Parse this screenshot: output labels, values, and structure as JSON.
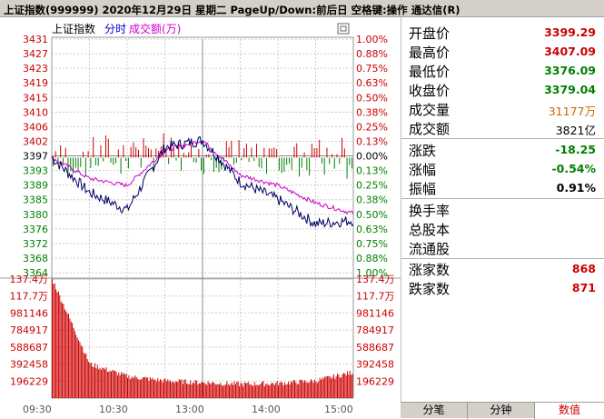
{
  "title": "上证指数(999999)  2020年12月29日 星期二 PageUp/Down:前后日 空格键:操作 通达信(R)",
  "chart_header": {
    "name": "上证指数",
    "mode": "分时",
    "indicator": "成交额(万)"
  },
  "colors": {
    "up": "#cc0000",
    "down": "#008000",
    "price_line": "#000066",
    "avg_line": "#cc00cc",
    "grid": "#cccccc",
    "volume_bar": "#cc0000"
  },
  "price_axis": {
    "left_ticks": [
      "3431",
      "3427",
      "3423",
      "3419",
      "3415",
      "3410",
      "3406",
      "3402",
      "3397",
      "3393",
      "3389",
      "3385",
      "3380",
      "3376",
      "3372",
      "3368",
      "3364"
    ],
    "right_ticks": [
      "1.00%",
      "0.88%",
      "0.75%",
      "0.63%",
      "0.50%",
      "0.38%",
      "0.25%",
      "0.13%",
      "0.00%",
      "0.13%",
      "0.25%",
      "0.38%",
      "0.50%",
      "0.63%",
      "0.75%",
      "0.88%",
      "1.00%"
    ],
    "center_index": 8
  },
  "volume_axis": {
    "ticks": [
      "137.4万",
      "117.7万",
      "981146",
      "784917",
      "588687",
      "392458",
      "196229"
    ]
  },
  "time_axis": [
    "09:30",
    "10:30",
    "13:00",
    "14:00",
    "15:00"
  ],
  "chart_data": {
    "type": "line",
    "prev_close": 3397,
    "ylim": [
      3364,
      3431
    ],
    "volume_ylim": [
      0,
      1374000
    ],
    "x": [
      "09:30",
      "10:00",
      "10:30",
      "11:00",
      "11:30/13:00",
      "13:30",
      "14:00",
      "14:30",
      "15:00"
    ],
    "series": [
      {
        "values": [
          3397,
          3387,
          3382,
          3400,
          3402,
          3390,
          3385,
          3378,
          3379
        ]
      },
      {
        "values": [
          3397,
          3391,
          3389,
          3399,
          3402,
          3392,
          3389,
          3384,
          3381
        ]
      }
    ],
    "volume": [
      1374000,
      392458,
      250000,
      200000,
      180000,
      160000,
      170000,
      200000,
      300000
    ]
  },
  "panel": {
    "rows1": [
      {
        "label": "开盘价",
        "value": "3399.29",
        "color": "#cc0000"
      },
      {
        "label": "最高价",
        "value": "3407.09",
        "color": "#cc0000"
      },
      {
        "label": "最低价",
        "value": "3376.09",
        "color": "#008000"
      },
      {
        "label": "收盘价",
        "value": "3379.04",
        "color": "#008000"
      },
      {
        "label": "成交量",
        "value": "31177万",
        "color": "#cc6600"
      },
      {
        "label": "成交额",
        "value": "3821亿",
        "color": "#000000"
      }
    ],
    "rows2": [
      {
        "label": "涨跌",
        "value": "-18.25",
        "color": "#008000"
      },
      {
        "label": "涨幅",
        "value": "-0.54%",
        "color": "#008000"
      },
      {
        "label": "振幅",
        "value": "0.91%",
        "color": "#000000"
      }
    ],
    "rows3": [
      {
        "label": "换手率",
        "value": ""
      },
      {
        "label": "总股本",
        "value": ""
      },
      {
        "label": "流通股",
        "value": ""
      }
    ],
    "rows4": [
      {
        "label": "涨家数",
        "value": "868",
        "color": "#cc0000"
      },
      {
        "label": "跌家数",
        "value": "871",
        "color": "#cc0000"
      }
    ]
  },
  "tabs": [
    "分笔",
    "分钟",
    "数值"
  ],
  "active_tab": 2
}
